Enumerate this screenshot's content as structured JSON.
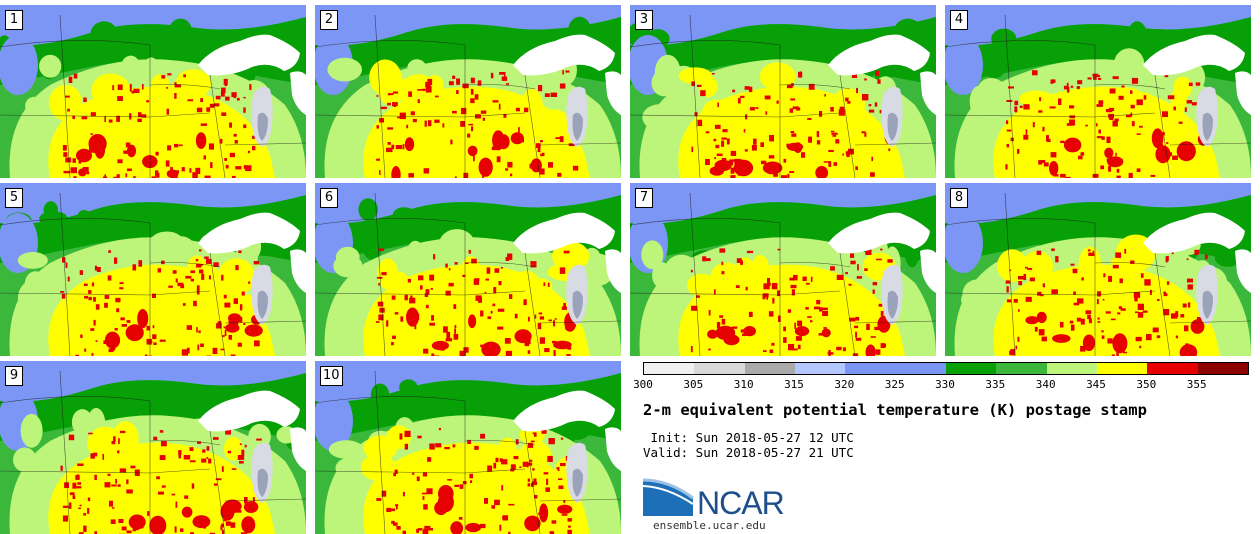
{
  "panels": [
    {
      "label": "1"
    },
    {
      "label": "2"
    },
    {
      "label": "3"
    },
    {
      "label": "4"
    },
    {
      "label": "5"
    },
    {
      "label": "6"
    },
    {
      "label": "7"
    },
    {
      "label": "8"
    },
    {
      "label": "9"
    },
    {
      "label": "10"
    }
  ],
  "colorbar": {
    "colors": [
      "#f0f0f0",
      "#d9d9d9",
      "#aaaaaa",
      "#b4c8ff",
      "#7b96f5",
      "#7b96f5",
      "#07a007",
      "#3bb83b",
      "#bdf57a",
      "#ffff00",
      "#e60000",
      "#8b0000"
    ],
    "ticks": [
      "300",
      "305",
      "310",
      "315",
      "320",
      "325",
      "330",
      "335",
      "340",
      "345",
      "350",
      "355"
    ],
    "range": [
      300,
      360
    ]
  },
  "title": "2-m equivalent potential temperature (K) postage stamp",
  "init_text": " Init: Sun 2018-05-27 12 UTC",
  "valid_text": "Valid: Sun 2018-05-27 21 UTC",
  "logo": {
    "text": "NCAR",
    "website": "ensemble.ucar.edu"
  },
  "colors": {
    "lake": "#ffffff",
    "lake_shallow": "#d8dbe3",
    "lake_michigan": "#9aa3ba",
    "cold": "#7b96f5",
    "cool": "#07a007",
    "mid": "#3bb83b",
    "warm": "#bdf57a",
    "hot": "#ffff00",
    "hottest": "#e60000"
  }
}
